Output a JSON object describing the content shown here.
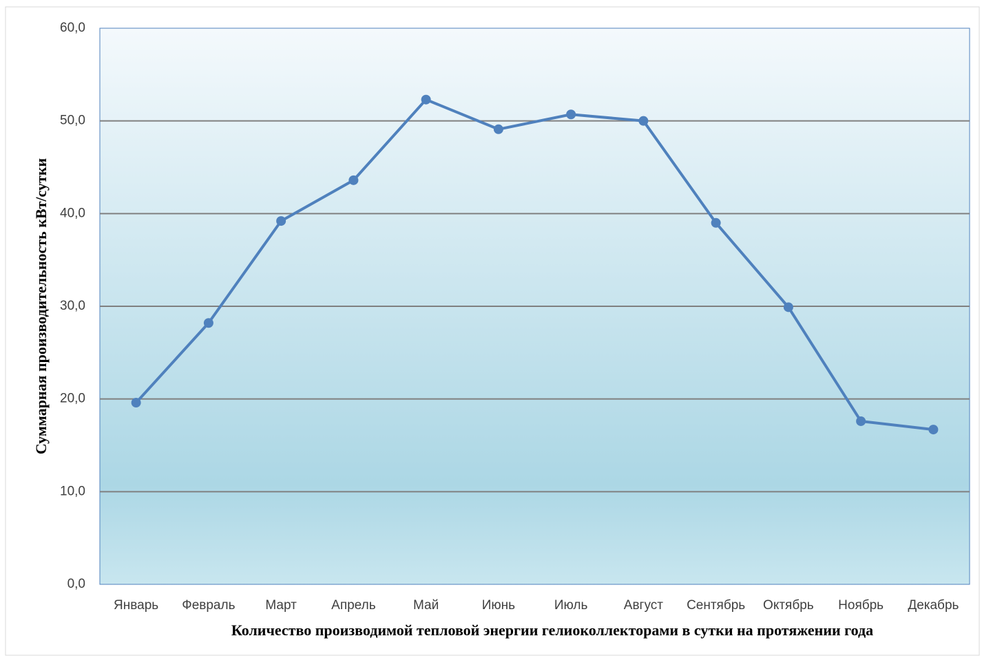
{
  "chart_data": {
    "type": "line",
    "x_label": "Количество производимой тепловой энергии гелиоколлекторами в сутки на протяжении года",
    "y_label": "Суммарная производительность кВт/сутки",
    "categories": [
      "Январь",
      "Февраль",
      "Март",
      "Апрель",
      "Май",
      "Июнь",
      "Июль",
      "Август",
      "Сентябрь",
      "Октябрь",
      "Ноябрь",
      "Декабрь"
    ],
    "series": [
      {
        "color": "#4f81bd",
        "values": [
          19.6,
          28.2,
          39.2,
          43.6,
          52.3,
          49.1,
          50.7,
          50.0,
          39.0,
          29.9,
          17.6,
          16.7
        ]
      }
    ],
    "ylim": [
      0,
      60
    ],
    "yticks": [
      {
        "value": 0,
        "label": "0,0"
      },
      {
        "value": 10,
        "label": "10,0"
      },
      {
        "value": 20,
        "label": "20,0"
      },
      {
        "value": 30,
        "label": "30,0"
      },
      {
        "value": 40,
        "label": "40,0"
      },
      {
        "value": 50,
        "label": "50,0"
      },
      {
        "value": 60,
        "label": "60,0"
      }
    ],
    "grid": true
  }
}
